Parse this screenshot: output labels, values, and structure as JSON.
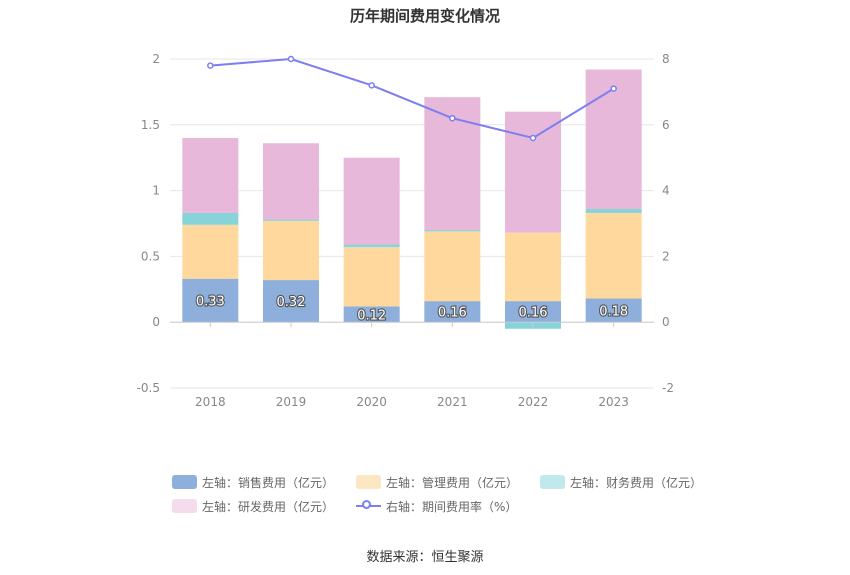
{
  "chart_data": {
    "type": "bar",
    "title": "历年期间费用变化情况",
    "categories": [
      "2018",
      "2019",
      "2020",
      "2021",
      "2022",
      "2023"
    ],
    "stacked": true,
    "series": [
      {
        "name": "左轴：销售费用（亿元）",
        "axis": "left",
        "color": "#8eaedb",
        "legend_color": "#8eaedb",
        "values": [
          0.33,
          0.32,
          0.12,
          0.16,
          0.16,
          0.18
        ],
        "labels": [
          "0.33",
          "0.32",
          "0.12",
          "0.16",
          "0.16",
          "0.18"
        ]
      },
      {
        "name": "左轴：管理费用（亿元）",
        "axis": "left",
        "color": "#fed89c",
        "legend_color": "#fde6c2",
        "values": [
          0.41,
          0.45,
          0.45,
          0.53,
          0.52,
          0.65
        ]
      },
      {
        "name": "左轴：财务费用（亿元）",
        "axis": "left",
        "color": "#86d4da",
        "legend_color": "#c1e9ec",
        "values": [
          0.09,
          0.01,
          0.02,
          0.01,
          -0.05,
          0.03
        ]
      },
      {
        "name": "左轴：研发费用（亿元）",
        "axis": "left",
        "color": "#e8b8da",
        "legend_color": "#f4dcec",
        "values": [
          0.57,
          0.58,
          0.66,
          1.01,
          0.92,
          1.06
        ]
      }
    ],
    "line_series": {
      "name": "右轴：期间费用率（%）",
      "axis": "right",
      "color": "#7b7ff0",
      "values": [
        7.8,
        8.0,
        7.2,
        6.2,
        5.6,
        7.1
      ]
    },
    "y_left": {
      "min": -0.5,
      "max": 2,
      "ticks": [
        "-0.5",
        "0",
        "0.5",
        "1",
        "1.5",
        "2"
      ]
    },
    "y_right": {
      "min": -2,
      "max": 8,
      "ticks": [
        "-2",
        "0",
        "2",
        "4",
        "6",
        "8"
      ]
    },
    "grid": true,
    "legend_position": "bottom"
  },
  "source": "数据来源：恒生聚源"
}
